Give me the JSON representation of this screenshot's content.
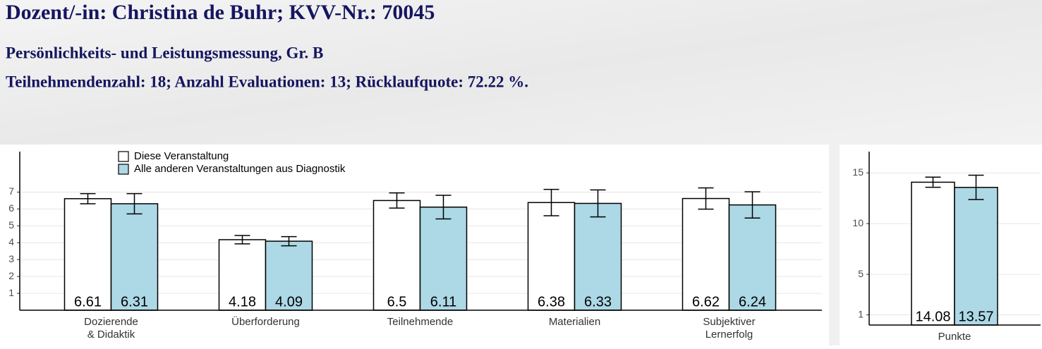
{
  "header": {
    "title": "Dozent/-in: Christina de Buhr; KVV-Nr.: 70045",
    "subtitle": "Persönlichkeits- und Leistungsmessung, Gr. B",
    "info": "Teilnehmendenzahl: 18; Anzahl Evaluationen: 13; Rücklaufquote: 72.22 %."
  },
  "chart_data": [
    {
      "type": "bar",
      "categories": [
        "Dozierende\n& Didaktik",
        "Überforderung",
        "Teilnehmende",
        "Materialien",
        "Subjektiver\nLernerfolg"
      ],
      "series": [
        {
          "name": "Diese Veranstaltung",
          "color": "#ffffff",
          "values": [
            6.61,
            4.18,
            6.5,
            6.38,
            6.62
          ],
          "errors": [
            0.3,
            0.25,
            0.45,
            0.78,
            0.63
          ]
        },
        {
          "name": "Alle anderen Veranstaltungen aus Diagnostik",
          "color": "#add8e6",
          "values": [
            6.31,
            4.09,
            6.11,
            6.33,
            6.24
          ],
          "errors": [
            0.6,
            0.27,
            0.7,
            0.8,
            0.78
          ]
        }
      ],
      "ylim": [
        0,
        9.4
      ],
      "yticks": [
        1,
        2,
        3,
        4,
        5,
        6,
        7
      ],
      "grid": true,
      "legend": "top-left"
    },
    {
      "type": "bar",
      "categories": [
        "Punkte"
      ],
      "series": [
        {
          "color": "#ffffff",
          "values": [
            14.08
          ],
          "errors": [
            0.5
          ]
        },
        {
          "color": "#add8e6",
          "values": [
            13.57
          ],
          "errors": [
            1.2
          ]
        }
      ],
      "ylim": [
        0,
        17.1
      ],
      "yticks": [
        1,
        5,
        10,
        15
      ],
      "grid": true
    }
  ]
}
